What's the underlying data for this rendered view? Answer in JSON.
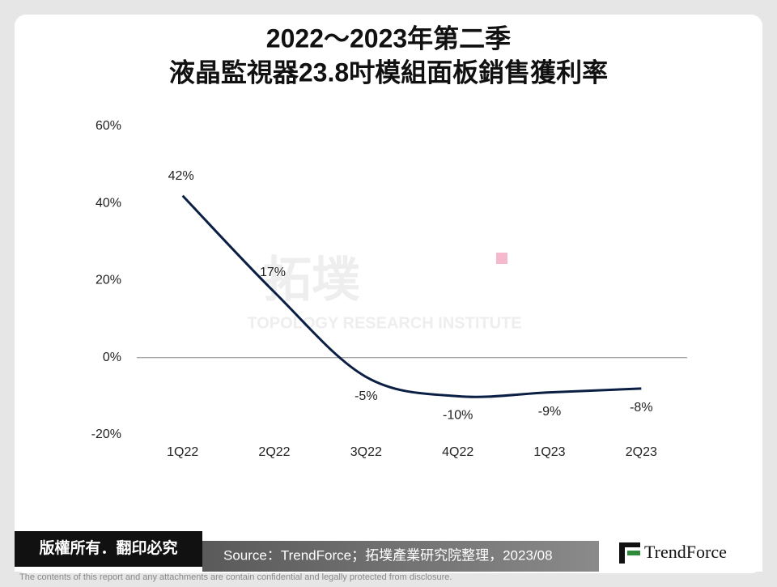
{
  "chart_data": {
    "type": "line",
    "title": "2022～2023年第二季",
    "subtitle": "液晶監視器23.8吋模組面板銷售獲利率",
    "categories": [
      "1Q22",
      "2Q22",
      "3Q22",
      "4Q22",
      "1Q23",
      "2Q23"
    ],
    "values": [
      42,
      17,
      -5,
      -10,
      -9,
      -8
    ],
    "value_labels": [
      "42%",
      "17%",
      "-5%",
      "-10%",
      "-9%",
      "-8%"
    ],
    "color": "#0b1f44",
    "ylim": [
      -20,
      60
    ],
    "yticks": [
      {
        "value": -20,
        "label": "-20%"
      },
      {
        "value": 0,
        "label": "0%"
      },
      {
        "value": 20,
        "label": "20%"
      },
      {
        "value": 40,
        "label": "40%"
      },
      {
        "value": 60,
        "label": "60%"
      }
    ],
    "grid": false
  },
  "watermark": {
    "name": "拓墣",
    "english": "TOPOLOGY RESEARCH INSTITUTE"
  },
  "footer": {
    "copyright": "版權所有．翻印必究",
    "source": "Source：TrendForce；拓墣產業研究院整理，2023/08",
    "logo": "TrendForce",
    "disclaimer": "The contents of this report and any attachments are contain confidential and legally protected from disclosure."
  }
}
